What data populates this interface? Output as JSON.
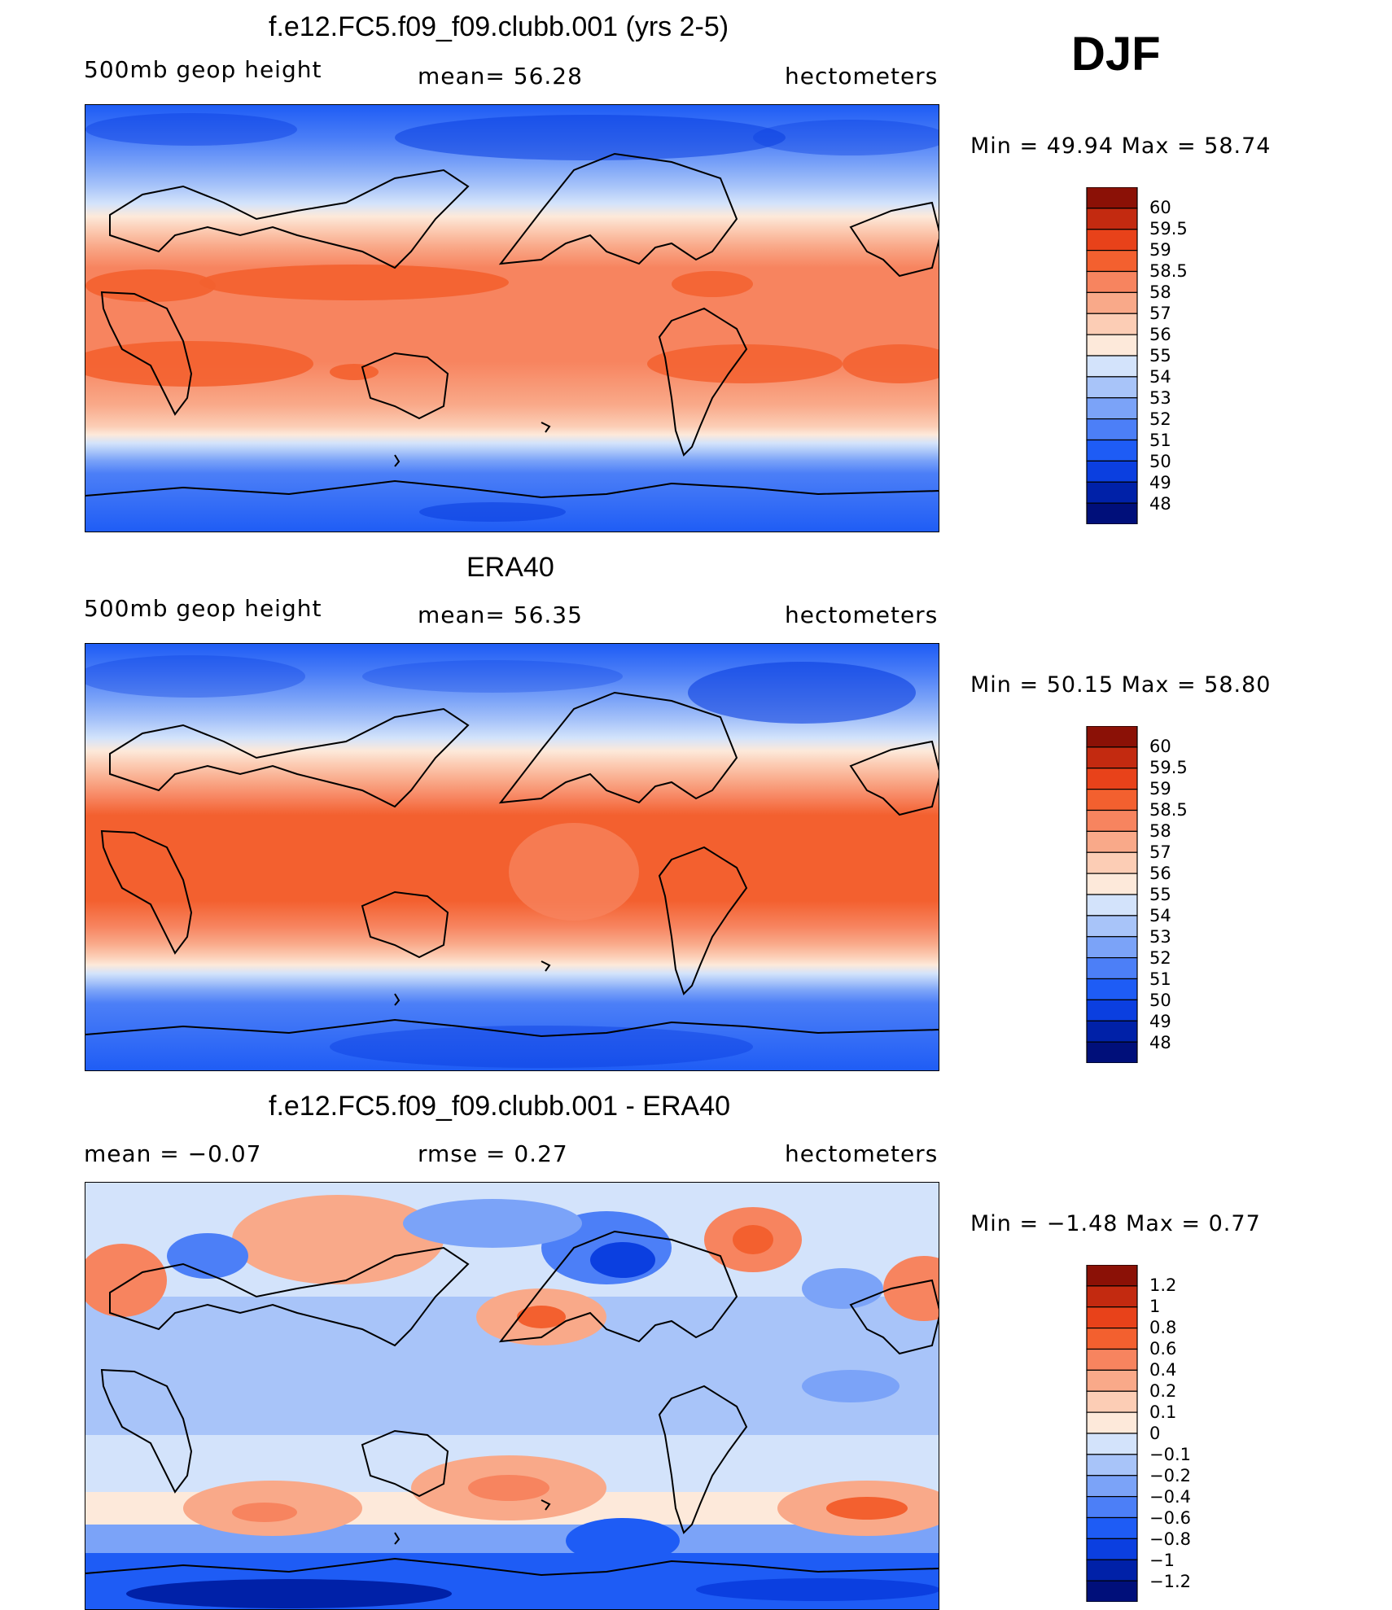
{
  "season": "DJF",
  "panels": [
    {
      "title": "f.e12.FC5.f09_f09.clubb.001 (yrs 2-5)",
      "left_label": "500mb  geop  height",
      "center_label": "mean=   56.28",
      "right_label": "hectometers",
      "minmax": "Min  =    49.94  Max  =    58.74",
      "colorbar_labels": [
        "60",
        "59.5",
        "59",
        "58.5",
        "58",
        "57",
        "56",
        "55",
        "54",
        "53",
        "52",
        "51",
        "50",
        "49",
        "48"
      ]
    },
    {
      "title": "ERA40",
      "left_label": "500mb  geop  height",
      "center_label": "mean=   56.35",
      "right_label": "hectometers",
      "minmax": "Min  =    50.15  Max  =    58.80",
      "colorbar_labels": [
        "60",
        "59.5",
        "59",
        "58.5",
        "58",
        "57",
        "56",
        "55",
        "54",
        "53",
        "52",
        "51",
        "50",
        "49",
        "48"
      ]
    },
    {
      "title": "f.e12.FC5.f09_f09.clubb.001 - ERA40",
      "left_label": "mean  =    −0.07",
      "center_label": "rmse  =     0.27",
      "right_label": "hectometers",
      "minmax": "Min  =    −1.48  Max  =      0.77",
      "colorbar_labels": [
        "1.2",
        "1",
        "0.8",
        "0.6",
        "0.4",
        "0.2",
        "0.1",
        "0",
        "−0.1",
        "−0.2",
        "−0.4",
        "−0.6",
        "−0.8",
        "−1",
        "−1.2"
      ]
    }
  ],
  "colors": {
    "full_colorbar": [
      "#000F7A",
      "#0021A8",
      "#0B3FE0",
      "#1E5CF5",
      "#4C7FF7",
      "#7BA3F8",
      "#A8C4F9",
      "#D3E3FB",
      "#FDE9DA",
      "#FCCDB5",
      "#F9A989",
      "#F7845F",
      "#F3602F",
      "#E8421A",
      "#C32A10",
      "#8B1106"
    ],
    "diff_colorbar": [
      "#000F7A",
      "#0021A8",
      "#0B3FE0",
      "#1E5CF5",
      "#4C7FF7",
      "#7BA3F8",
      "#A8C4F9",
      "#D3E3FB",
      "#FDE9DA",
      "#FCCDB5",
      "#F9A989",
      "#F7845F",
      "#F3602F",
      "#E8421A",
      "#C32A10",
      "#8B1106"
    ]
  }
}
